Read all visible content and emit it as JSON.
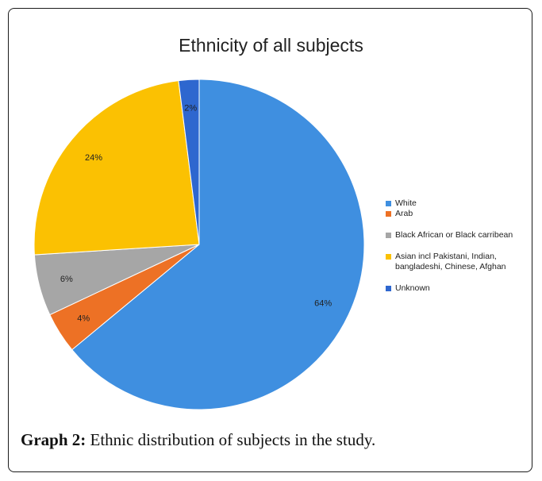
{
  "chart_data": {
    "type": "pie",
    "title": "Ethnicity of all subjects",
    "slices": [
      {
        "label": "White",
        "value": 64,
        "display": "64%",
        "color": "#3f8fe0"
      },
      {
        "label": "Arab",
        "value": 4,
        "display": "4%",
        "color": "#ed7125"
      },
      {
        "label": "Black African or Black carribean",
        "value": 6,
        "display": "6%",
        "color": "#a6a6a6"
      },
      {
        "label": "Asian incl Pakistani, Indian, bangladeshi, Chinese, Afghan",
        "value": 24,
        "display": "24%",
        "color": "#fbc102"
      },
      {
        "label": "Unknown",
        "value": 2,
        "display": "2%",
        "color": "#2e67cf"
      }
    ],
    "legend_position": "right"
  },
  "caption": {
    "label": "Graph 2:",
    "text": " Ethnic distribution of subjects in the study."
  }
}
